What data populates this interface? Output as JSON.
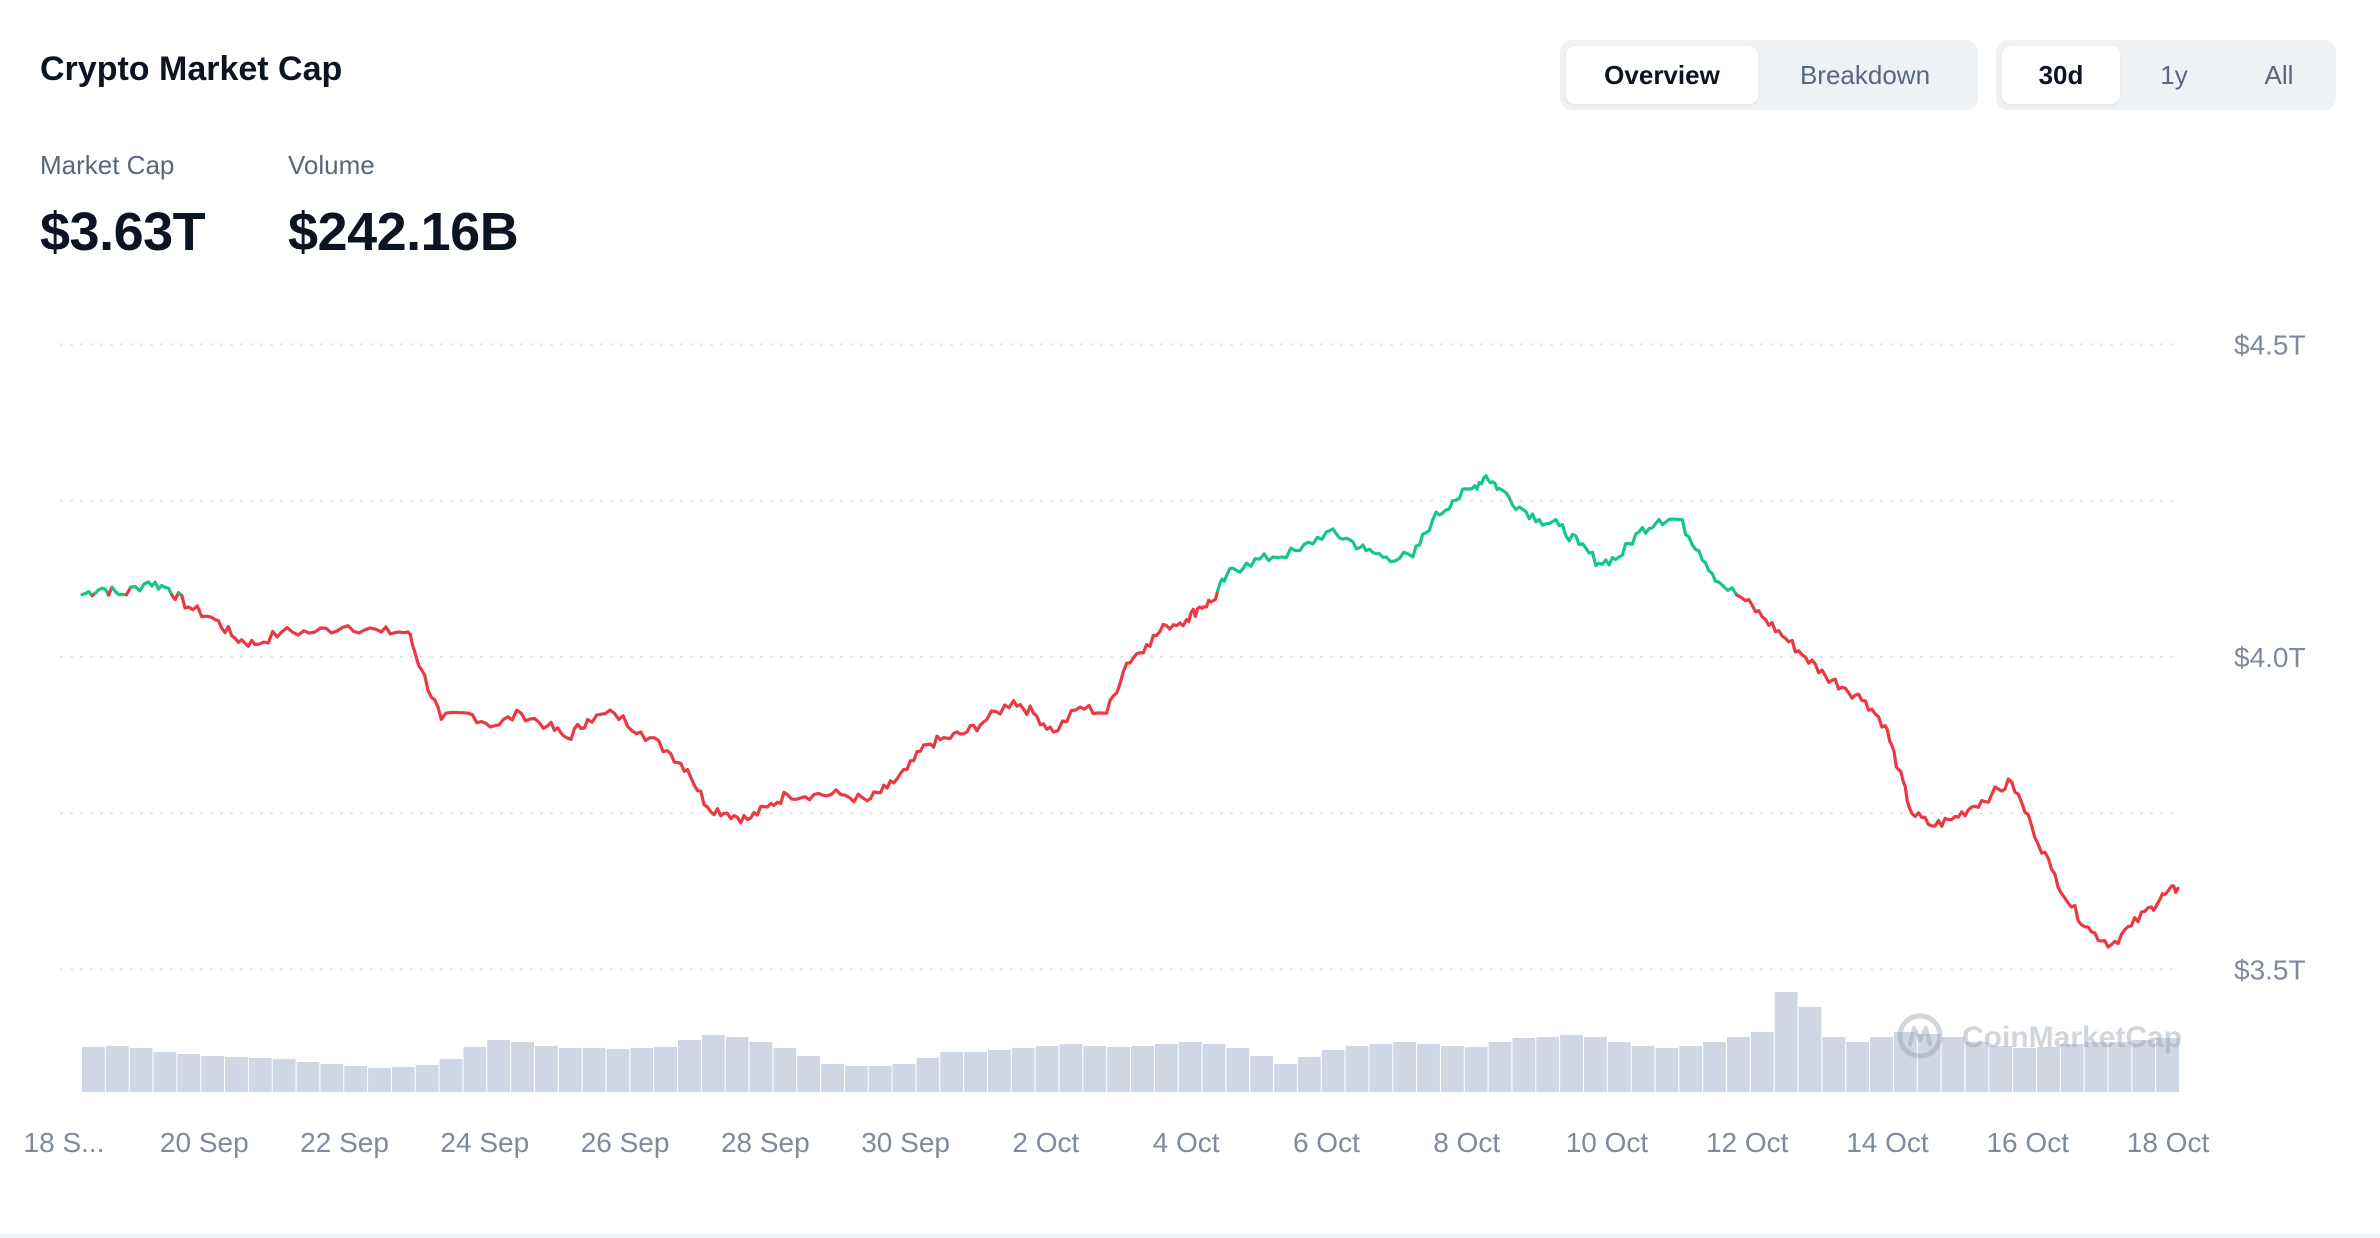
{
  "header": {
    "title": "Crypto Market Cap",
    "view_tabs": [
      {
        "label": "Overview",
        "active": true
      },
      {
        "label": "Breakdown",
        "active": false
      }
    ],
    "range_tabs": [
      {
        "label": "30d",
        "active": true
      },
      {
        "label": "1y",
        "active": false
      },
      {
        "label": "All",
        "active": false
      }
    ]
  },
  "stats": {
    "market_cap_label": "Market Cap",
    "market_cap_value": "$3.63T",
    "volume_label": "Volume",
    "volume_value": "$242.16B"
  },
  "watermark": "CoinMarketCap",
  "colors": {
    "up": "#16c784",
    "down": "#ea3943",
    "grid": "#e3e6ea",
    "axis_text": "#808a9d",
    "volume": "#cfd6e4"
  },
  "chart_data": {
    "type": "line",
    "baseline": 4.1,
    "y_unit": "T USD",
    "ylim": [
      3.48,
      4.52
    ],
    "yticks": [
      {
        "value": 4.5,
        "label": "$4.5T"
      },
      {
        "value": 4.0,
        "label": "$4.0T"
      },
      {
        "value": 3.5,
        "label": "$3.5T"
      }
    ],
    "xticks": [
      "18 S...",
      "20 Sep",
      "22 Sep",
      "24 Sep",
      "26 Sep",
      "28 Sep",
      "30 Sep",
      "2 Oct",
      "4 Oct",
      "6 Oct",
      "8 Oct",
      "10 Oct",
      "12 Oct",
      "14 Oct",
      "16 Oct",
      "18 Oct"
    ],
    "xtick_days": [
      0,
      2,
      4,
      6,
      8,
      10,
      12,
      14,
      16,
      18,
      20,
      22,
      24,
      26,
      28,
      30
    ],
    "grid": true,
    "legend": "none",
    "series": [
      {
        "points": [
          [
            0.0,
            4.1
          ],
          [
            0.3,
            4.11
          ],
          [
            0.6,
            4.1
          ],
          [
            1.0,
            4.12
          ],
          [
            1.3,
            4.11
          ],
          [
            1.6,
            4.08
          ],
          [
            2.0,
            4.06
          ],
          [
            2.3,
            4.03
          ],
          [
            2.6,
            4.02
          ],
          [
            3.0,
            4.04
          ],
          [
            3.5,
            4.04
          ],
          [
            4.0,
            4.05
          ],
          [
            4.5,
            4.04
          ],
          [
            4.9,
            4.04
          ],
          [
            5.1,
            3.98
          ],
          [
            5.4,
            3.9
          ],
          [
            5.8,
            3.91
          ],
          [
            6.2,
            3.89
          ],
          [
            6.6,
            3.91
          ],
          [
            7.0,
            3.89
          ],
          [
            7.3,
            3.87
          ],
          [
            7.6,
            3.9
          ],
          [
            8.0,
            3.91
          ],
          [
            8.4,
            3.88
          ],
          [
            8.8,
            3.85
          ],
          [
            9.1,
            3.82
          ],
          [
            9.4,
            3.76
          ],
          [
            9.7,
            3.75
          ],
          [
            10.0,
            3.74
          ],
          [
            10.3,
            3.76
          ],
          [
            10.6,
            3.78
          ],
          [
            11.0,
            3.78
          ],
          [
            11.4,
            3.78
          ],
          [
            11.8,
            3.77
          ],
          [
            12.1,
            3.79
          ],
          [
            12.4,
            3.82
          ],
          [
            12.7,
            3.86
          ],
          [
            13.0,
            3.87
          ],
          [
            13.3,
            3.88
          ],
          [
            13.6,
            3.9
          ],
          [
            14.0,
            3.93
          ],
          [
            14.3,
            3.91
          ],
          [
            14.6,
            3.88
          ],
          [
            15.0,
            3.92
          ],
          [
            15.4,
            3.91
          ],
          [
            15.7,
            3.99
          ],
          [
            16.0,
            4.02
          ],
          [
            16.3,
            4.05
          ],
          [
            16.6,
            4.06
          ],
          [
            16.8,
            4.08
          ],
          [
            17.0,
            4.09
          ],
          [
            17.2,
            4.13
          ],
          [
            17.5,
            4.15
          ],
          [
            17.9,
            4.16
          ],
          [
            18.3,
            4.17
          ],
          [
            18.7,
            4.2
          ],
          [
            19.0,
            4.19
          ],
          [
            19.3,
            4.17
          ],
          [
            19.6,
            4.16
          ],
          [
            20.0,
            4.16
          ],
          [
            20.3,
            4.22
          ],
          [
            20.6,
            4.25
          ],
          [
            20.9,
            4.27
          ],
          [
            21.1,
            4.29
          ],
          [
            21.3,
            4.27
          ],
          [
            21.6,
            4.24
          ],
          [
            21.9,
            4.22
          ],
          [
            22.2,
            4.21
          ],
          [
            22.5,
            4.18
          ],
          [
            22.8,
            4.15
          ],
          [
            23.1,
            4.16
          ],
          [
            23.4,
            4.2
          ],
          [
            23.7,
            4.22
          ],
          [
            24.0,
            4.22
          ],
          [
            24.3,
            4.17
          ],
          [
            24.6,
            4.12
          ],
          [
            25.0,
            4.09
          ],
          [
            25.3,
            4.06
          ],
          [
            25.6,
            4.03
          ],
          [
            25.9,
            4.0
          ],
          [
            26.2,
            3.97
          ],
          [
            26.5,
            3.95
          ],
          [
            26.8,
            3.93
          ],
          [
            27.1,
            3.89
          ],
          [
            27.3,
            3.82
          ],
          [
            27.5,
            3.75
          ],
          [
            27.8,
            3.73
          ],
          [
            28.1,
            3.74
          ],
          [
            28.4,
            3.76
          ],
          [
            28.7,
            3.78
          ],
          [
            29.0,
            3.8
          ],
          [
            29.3,
            3.73
          ],
          [
            29.6,
            3.66
          ],
          [
            29.9,
            3.6
          ],
          [
            30.2,
            3.56
          ],
          [
            30.5,
            3.54
          ],
          [
            30.8,
            3.57
          ],
          [
            31.1,
            3.6
          ],
          [
            31.3,
            3.62
          ],
          [
            31.5,
            3.63
          ]
        ]
      }
    ],
    "volume_relative": [
      0.45,
      0.46,
      0.44,
      0.4,
      0.38,
      0.36,
      0.35,
      0.34,
      0.33,
      0.3,
      0.28,
      0.26,
      0.24,
      0.25,
      0.27,
      0.33,
      0.45,
      0.52,
      0.5,
      0.46,
      0.44,
      0.44,
      0.43,
      0.44,
      0.45,
      0.52,
      0.57,
      0.55,
      0.5,
      0.44,
      0.36,
      0.28,
      0.26,
      0.26,
      0.28,
      0.34,
      0.4,
      0.4,
      0.42,
      0.44,
      0.46,
      0.48,
      0.46,
      0.45,
      0.46,
      0.48,
      0.5,
      0.48,
      0.44,
      0.36,
      0.28,
      0.35,
      0.42,
      0.46,
      0.48,
      0.5,
      0.48,
      0.46,
      0.45,
      0.5,
      0.54,
      0.55,
      0.57,
      0.55,
      0.5,
      0.46,
      0.44,
      0.46,
      0.5,
      0.55,
      0.6,
      1.0,
      0.85,
      0.55,
      0.5,
      0.55,
      0.6,
      0.58,
      0.55,
      0.5,
      0.46,
      0.44,
      0.45,
      0.48,
      0.5,
      0.5,
      0.52,
      0.54
    ]
  }
}
